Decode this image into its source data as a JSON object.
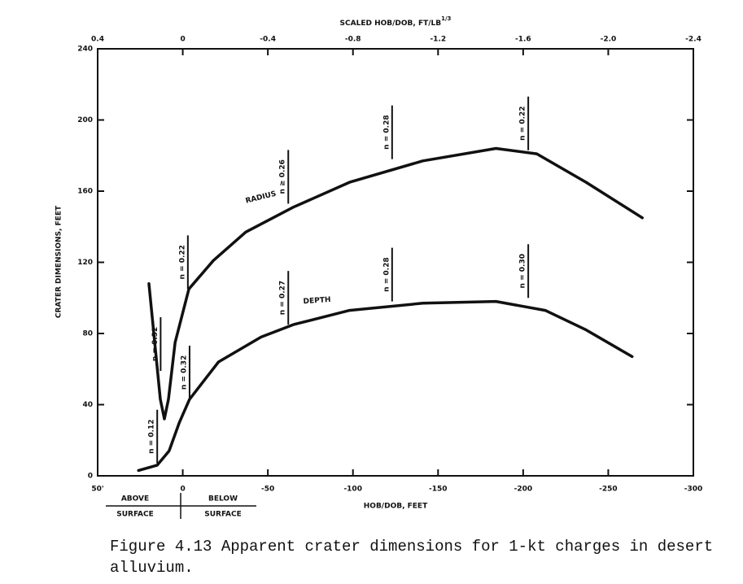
{
  "chart_data": {
    "type": "line",
    "x2_label": "SCALED HOB/DOB, FT/LB",
    "x2_label_sup": "1/3",
    "xlabel": "HOB/DOB, FEET",
    "ylabel": "CRATER DIMENSIONS, FEET",
    "xlim": [
      50,
      -300
    ],
    "xticks": [
      {
        "value": 50,
        "label": "50'"
      },
      0,
      -50,
      -100,
      -150,
      -200,
      -250,
      -300
    ],
    "x2lim": [
      0.4,
      -2.4
    ],
    "x2ticks": [
      0.4,
      0,
      -0.4,
      -0.8,
      -1.2,
      -1.6,
      {
        "value": -2.0,
        "label": "-2.0"
      },
      -2.4
    ],
    "ylim": [
      0,
      240
    ],
    "yticks": [
      0,
      40,
      80,
      120,
      160,
      200,
      240
    ],
    "series": [
      {
        "name": "RADIUS",
        "color": "#111111",
        "x": [
          19.9,
          16.5,
          13.2,
          10.8,
          8.4,
          4.5,
          -3.6,
          -18,
          -37,
          -65,
          -98,
          -141,
          -184,
          -208,
          -237,
          -270
        ],
        "values": [
          108,
          75,
          43,
          32,
          43,
          75,
          105,
          121,
          137,
          151,
          165,
          177,
          184,
          181,
          165,
          145
        ]
      },
      {
        "name": "DEPTH",
        "color": "#111111",
        "x": [
          26,
          15,
          8,
          2,
          -4,
          -21,
          -46,
          -65,
          -98,
          -141,
          -184,
          -213,
          -237,
          -264
        ],
        "values": [
          3,
          6,
          14,
          30,
          43,
          64,
          78,
          85,
          93,
          97,
          98,
          93,
          82,
          67
        ]
      }
    ],
    "annotations": [
      {
        "text": "n = 0.32",
        "x": 13,
        "y": 59
      },
      {
        "text": "n = 0.22",
        "x": -3,
        "y": 105
      },
      {
        "text": "n ≥ 0.26",
        "x": -62,
        "y": 153
      },
      {
        "text": "n = 0.28",
        "x": -123,
        "y": 178
      },
      {
        "text": "n = 0.22",
        "x": -203,
        "y": 183
      },
      {
        "text": "n = 0.12",
        "x": 15,
        "y": 7
      },
      {
        "text": "n = 0.32",
        "x": -4,
        "y": 43
      },
      {
        "text": "n = 0.27",
        "x": -62,
        "y": 85
      },
      {
        "text": "n = 0.28",
        "x": -123,
        "y": 98
      },
      {
        "text": "n = 0.30",
        "x": -203,
        "y": 100
      }
    ],
    "surface_labels": {
      "above": [
        "ABOVE",
        "SURFACE"
      ],
      "below": [
        "BELOW",
        "SURFACE"
      ]
    },
    "caption": [
      "Figure 4.13  Apparent crater dimensions for 1-kt charges in desert",
      "alluvium."
    ]
  }
}
